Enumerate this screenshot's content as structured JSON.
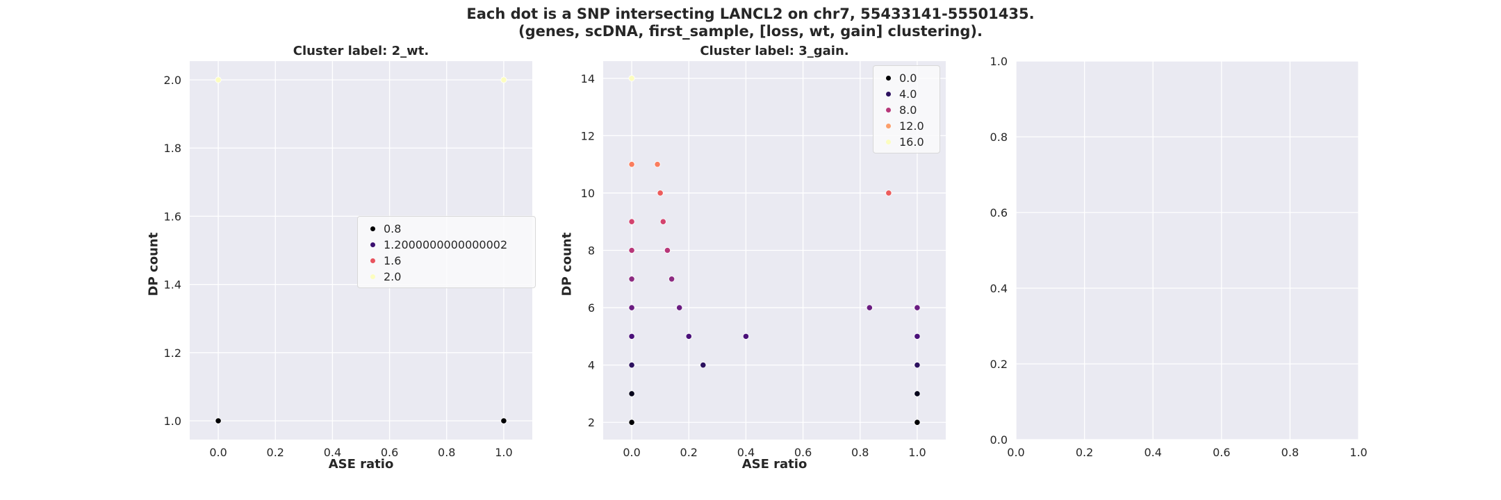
{
  "figure": {
    "title_line1": "Each dot is a SNP intersecting LANCL2 on chr7, 55433141-55501435.",
    "title_line2": "(genes, scDNA, first_sample, [loss, wt, gain] clustering)."
  },
  "chart_data": [
    {
      "type": "scatter",
      "title": "Cluster label: 2_wt.",
      "xlabel": "ASE ratio",
      "ylabel": "DP count",
      "xlim": [
        -0.1,
        1.1
      ],
      "ylim": [
        0.945,
        2.055
      ],
      "xticks": [
        0.0,
        0.2,
        0.4,
        0.6,
        0.8,
        1.0
      ],
      "xtick_labels": [
        "0.0",
        "0.2",
        "0.4",
        "0.6",
        "0.8",
        "1.0"
      ],
      "yticks": [
        1.0,
        1.2,
        1.4,
        1.6,
        1.8,
        2.0
      ],
      "ytick_labels": [
        "1.0",
        "1.2",
        "1.4",
        "1.6",
        "1.8",
        "2.0"
      ],
      "grid": true,
      "legend_position": "center-right",
      "legend": [
        {
          "label": "0.8",
          "color": "#000004"
        },
        {
          "label": "1.2000000000000002",
          "color": "#3b0f70"
        },
        {
          "label": "1.6",
          "color": "#e8535e"
        },
        {
          "label": "2.0",
          "color": "#fcfdbf"
        }
      ],
      "points": [
        {
          "x": 0.0,
          "y": 1,
          "color": "#000004"
        },
        {
          "x": 1.0,
          "y": 1,
          "color": "#000004"
        },
        {
          "x": 0.0,
          "y": 2,
          "color": "#fcfdbf"
        },
        {
          "x": 1.0,
          "y": 2,
          "color": "#fcfdbf"
        }
      ]
    },
    {
      "type": "scatter",
      "title": "Cluster label: 3_gain.",
      "xlabel": "ASE ratio",
      "ylabel": "DP count",
      "xlim": [
        -0.1,
        1.1
      ],
      "ylim": [
        1.4,
        14.6
      ],
      "xticks": [
        0.0,
        0.2,
        0.4,
        0.6,
        0.8,
        1.0
      ],
      "xtick_labels": [
        "0.0",
        "0.2",
        "0.4",
        "0.6",
        "0.8",
        "1.0"
      ],
      "yticks": [
        2,
        4,
        6,
        8,
        10,
        12,
        14
      ],
      "ytick_labels": [
        "2",
        "4",
        "6",
        "8",
        "10",
        "12",
        "14"
      ],
      "grid": true,
      "legend_position": "top-right",
      "legend": [
        {
          "label": "0.0",
          "color": "#000004"
        },
        {
          "label": "4.0",
          "color": "#2c115f"
        },
        {
          "label": "8.0",
          "color": "#b73779"
        },
        {
          "label": "12.0",
          "color": "#fc9f6b"
        },
        {
          "label": "16.0",
          "color": "#fcfdbf"
        }
      ],
      "points": [
        {
          "x": 0.0,
          "y": 2,
          "color": "#000004"
        },
        {
          "x": 0.0,
          "y": 3,
          "color": "#07061c"
        },
        {
          "x": 0.0,
          "y": 4,
          "color": "#2c115f"
        },
        {
          "x": 0.0,
          "y": 5,
          "color": "#4a1079"
        },
        {
          "x": 0.0,
          "y": 6,
          "color": "#6a1c81"
        },
        {
          "x": 0.0,
          "y": 7,
          "color": "#8d2b81"
        },
        {
          "x": 0.0,
          "y": 8,
          "color": "#b73779"
        },
        {
          "x": 0.0,
          "y": 9,
          "color": "#d3436e"
        },
        {
          "x": 0.0,
          "y": 11,
          "color": "#fa7d5e"
        },
        {
          "x": 0.0,
          "y": 14,
          "color": "#fcfdbf"
        },
        {
          "x": 0.09,
          "y": 11,
          "color": "#fa7d5e"
        },
        {
          "x": 0.1,
          "y": 10,
          "color": "#ec5c5c"
        },
        {
          "x": 0.11,
          "y": 9,
          "color": "#d3436e"
        },
        {
          "x": 0.125,
          "y": 8,
          "color": "#b73779"
        },
        {
          "x": 0.14,
          "y": 7,
          "color": "#8d2b81"
        },
        {
          "x": 0.167,
          "y": 6,
          "color": "#6a1c81"
        },
        {
          "x": 0.2,
          "y": 5,
          "color": "#4a1079"
        },
        {
          "x": 0.25,
          "y": 4,
          "color": "#2c115f"
        },
        {
          "x": 0.4,
          "y": 5,
          "color": "#4a1079"
        },
        {
          "x": 0.833,
          "y": 6,
          "color": "#6a1c81"
        },
        {
          "x": 0.9,
          "y": 10,
          "color": "#ec5c5c"
        },
        {
          "x": 1.0,
          "y": 2,
          "color": "#000004"
        },
        {
          "x": 1.0,
          "y": 3,
          "color": "#07061c"
        },
        {
          "x": 1.0,
          "y": 4,
          "color": "#2c115f"
        },
        {
          "x": 1.0,
          "y": 5,
          "color": "#4a1079"
        },
        {
          "x": 1.0,
          "y": 6,
          "color": "#6a1c81"
        }
      ]
    },
    {
      "type": "scatter",
      "title": "",
      "xlabel": "",
      "ylabel": "",
      "xlim": [
        0,
        1
      ],
      "ylim": [
        0,
        1
      ],
      "xticks": [
        0.0,
        0.2,
        0.4,
        0.6,
        0.8,
        1.0
      ],
      "xtick_labels": [
        "0.0",
        "0.2",
        "0.4",
        "0.6",
        "0.8",
        "1.0"
      ],
      "yticks": [
        0.0,
        0.2,
        0.4,
        0.6,
        0.8,
        1.0
      ],
      "ytick_labels": [
        "0.0",
        "0.2",
        "0.4",
        "0.6",
        "0.8",
        "1.0"
      ],
      "grid": true,
      "legend": [],
      "points": []
    }
  ]
}
